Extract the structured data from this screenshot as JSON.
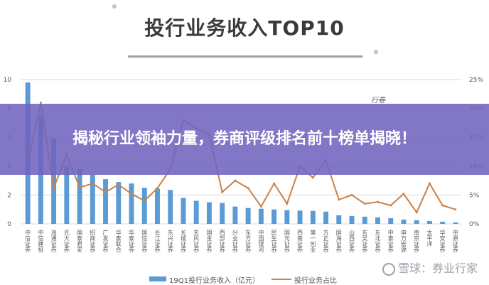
{
  "header": {
    "title": "投行业务收入TOP10"
  },
  "banner": {
    "headline": "揭秘行业领袖力量，券商评级排名前十榜单揭晓！"
  },
  "stamp": {
    "text": "行卷"
  },
  "watermark": {
    "text": "雪球：券业行家"
  },
  "chart_data": {
    "type": "bar",
    "categories": [
      "中信证券",
      "中信建投",
      "海通证券",
      "光大证券",
      "国泰君安",
      "招商证券",
      "广发证券",
      "华泰联合",
      "华泰证券",
      "国信证券",
      "长江证券",
      "东兴证券",
      "长城证券",
      "天风证券",
      "国金证券",
      "西部证券",
      "兴业证券",
      "东方证券",
      "中国银河",
      "民生证券",
      "国元证券",
      "西南证券",
      "第一创业",
      "方正证券",
      "国海证券",
      "山西证券",
      "东吴证券",
      "东北证券",
      "中泰证券",
      "申万宏源",
      "南京证券",
      "太平洋",
      "华安证券",
      "中原证券"
    ],
    "series": [
      {
        "name": "19Q1投行业务收入（亿元）",
        "type": "bar",
        "axis": "left",
        "values": [
          9.8,
          7.5,
          5.9,
          4.0,
          3.8,
          3.4,
          3.1,
          2.9,
          2.8,
          2.5,
          2.45,
          2.35,
          1.8,
          1.6,
          1.5,
          1.45,
          1.2,
          1.1,
          1.05,
          1.0,
          0.95,
          0.92,
          0.9,
          0.85,
          0.6,
          0.55,
          0.5,
          0.45,
          0.4,
          0.3,
          0.25,
          0.2,
          0.15,
          0.1
        ]
      },
      {
        "name": "投行业务占比",
        "type": "line",
        "axis": "right",
        "values": [
          10.5,
          21,
          6.2,
          12,
          6.3,
          7,
          5.5,
          6.8,
          5.2,
          4,
          6.2,
          9.5,
          18,
          16.5,
          15.5,
          5.5,
          7.5,
          6.2,
          3,
          7,
          3.5,
          10,
          8,
          11,
          4.2,
          5,
          3.5,
          3.8,
          3.2,
          5.2,
          2,
          7,
          3.2,
          2.5
        ]
      }
    ],
    "ylim_left": [
      0,
      10
    ],
    "yticks_left": [
      "0",
      "2",
      "4",
      "6",
      "8",
      "10"
    ],
    "ylim_right": [
      0,
      25
    ],
    "yticks_right": [
      "0%",
      "5%",
      "10%",
      "15%",
      "20%",
      "25%"
    ],
    "grid": true,
    "legend_position": "bottom",
    "colors": {
      "bar": "#5b9bd5",
      "line": "#c8824a"
    }
  }
}
